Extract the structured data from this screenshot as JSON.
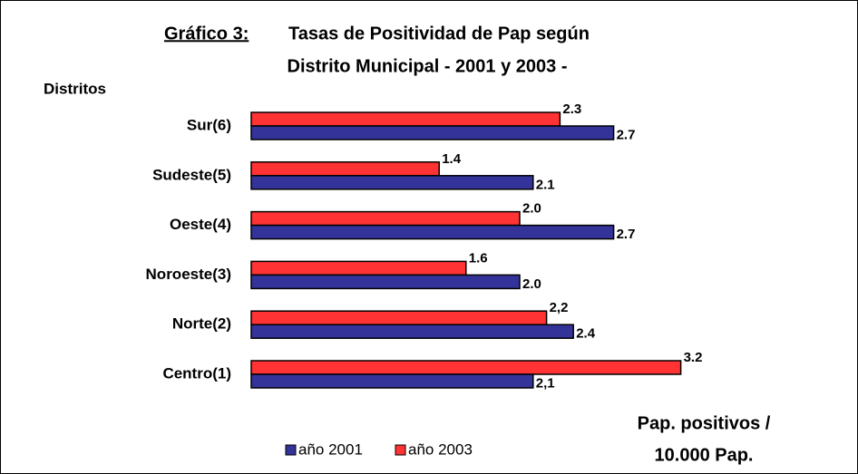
{
  "chart_data": {
    "type": "bar",
    "orientation": "horizontal",
    "title_label": "Gráfico 3:",
    "title": "Tasas de Positividad de Pap según",
    "subtitle": "Distrito Municipal - 2001 y 2003 -",
    "ylabel": "Distritos",
    "xlabel": [
      "Pap. positivos /",
      "10.000 Pap."
    ],
    "categories": [
      "Sur(6)",
      "Sudeste(5)",
      "Oeste(4)",
      "Noroeste(3)",
      "Norte(2)",
      "Centro(1)"
    ],
    "series": [
      {
        "name": "año 2003",
        "color": "#ff3333",
        "values": [
          2.3,
          1.4,
          2.0,
          1.6,
          2.2,
          3.2
        ],
        "value_labels": [
          "2.3",
          "1.4",
          "2.0",
          "1.6",
          "2,2",
          "3.2"
        ]
      },
      {
        "name": "año 2001",
        "color": "#333399",
        "values": [
          2.7,
          2.1,
          2.7,
          2.0,
          2.4,
          2.1
        ],
        "value_labels": [
          "2.7",
          "2.1",
          "2.7",
          "2.0",
          "2.4",
          "2,1"
        ]
      }
    ],
    "legend": "bottom"
  }
}
